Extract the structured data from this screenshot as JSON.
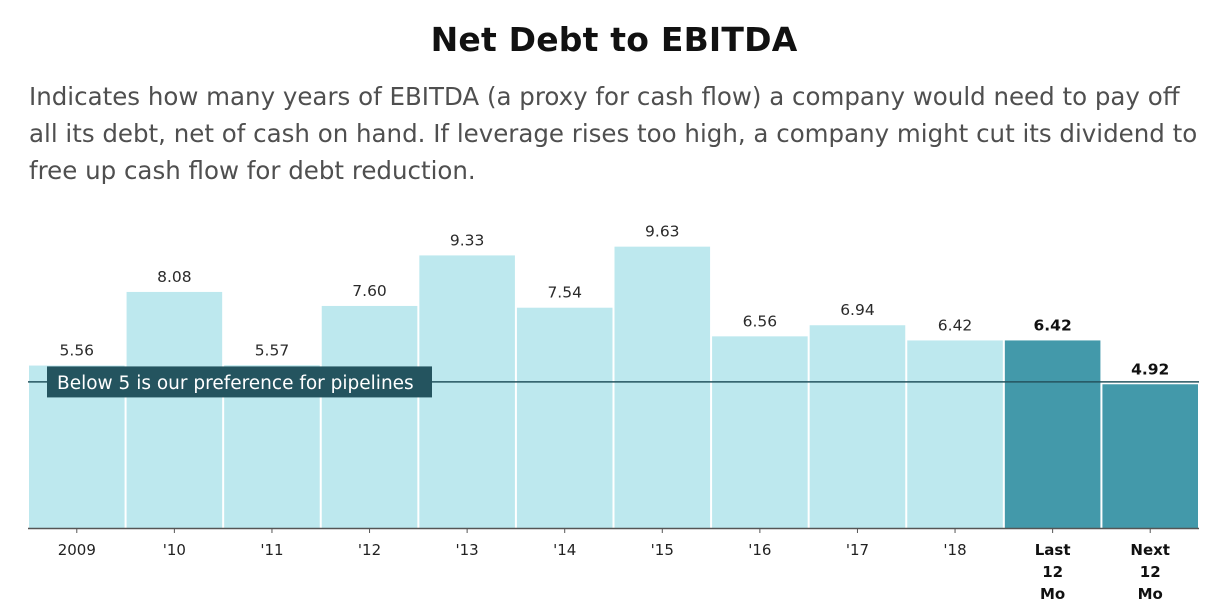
{
  "header": {
    "title": "Net Debt to EBITDA",
    "subtitle": "Indicates how many years of EBITDA (a proxy for cash flow) a company would need to pay off all its debt, net of cash on hand. If leverage rises too high, a company might cut its dividend to free up cash flow for debt reduction."
  },
  "chart_data": {
    "type": "bar",
    "categories": [
      "2009",
      "'10",
      "'11",
      "'12",
      "'13",
      "'14",
      "'15",
      "'16",
      "'17",
      "'18",
      "Last 12 Mo",
      "Next 12 Mo"
    ],
    "category_lines": [
      [
        "2009"
      ],
      [
        "'10"
      ],
      [
        "'11"
      ],
      [
        "'12"
      ],
      [
        "'13"
      ],
      [
        "'14"
      ],
      [
        "'15"
      ],
      [
        "'16"
      ],
      [
        "'17"
      ],
      [
        "'18"
      ],
      [
        "Last",
        "12",
        "Mo"
      ],
      [
        "Next",
        "12",
        "Mo"
      ]
    ],
    "values": [
      5.56,
      8.08,
      5.57,
      7.6,
      9.33,
      7.54,
      9.63,
      6.56,
      6.94,
      6.42,
      6.42,
      4.92
    ],
    "value_labels": [
      "5.56",
      "8.08",
      "5.57",
      "7.60",
      "9.33",
      "7.54",
      "9.63",
      "6.56",
      "6.94",
      "6.42",
      "6.42",
      "4.92"
    ],
    "highlighted": [
      false,
      false,
      false,
      false,
      false,
      false,
      false,
      false,
      false,
      false,
      true,
      true
    ],
    "colors": {
      "bar": "#bde8ee",
      "highlight": "#4399aa",
      "reference_line": "#24545f"
    },
    "ylim": [
      0,
      10.2
    ],
    "reference_line": {
      "value": 5,
      "label": "Below 5 is our preference for pipelines"
    },
    "title": "Net Debt to EBITDA",
    "xlabel": "",
    "ylabel": "",
    "grid": false,
    "legend": "none"
  }
}
